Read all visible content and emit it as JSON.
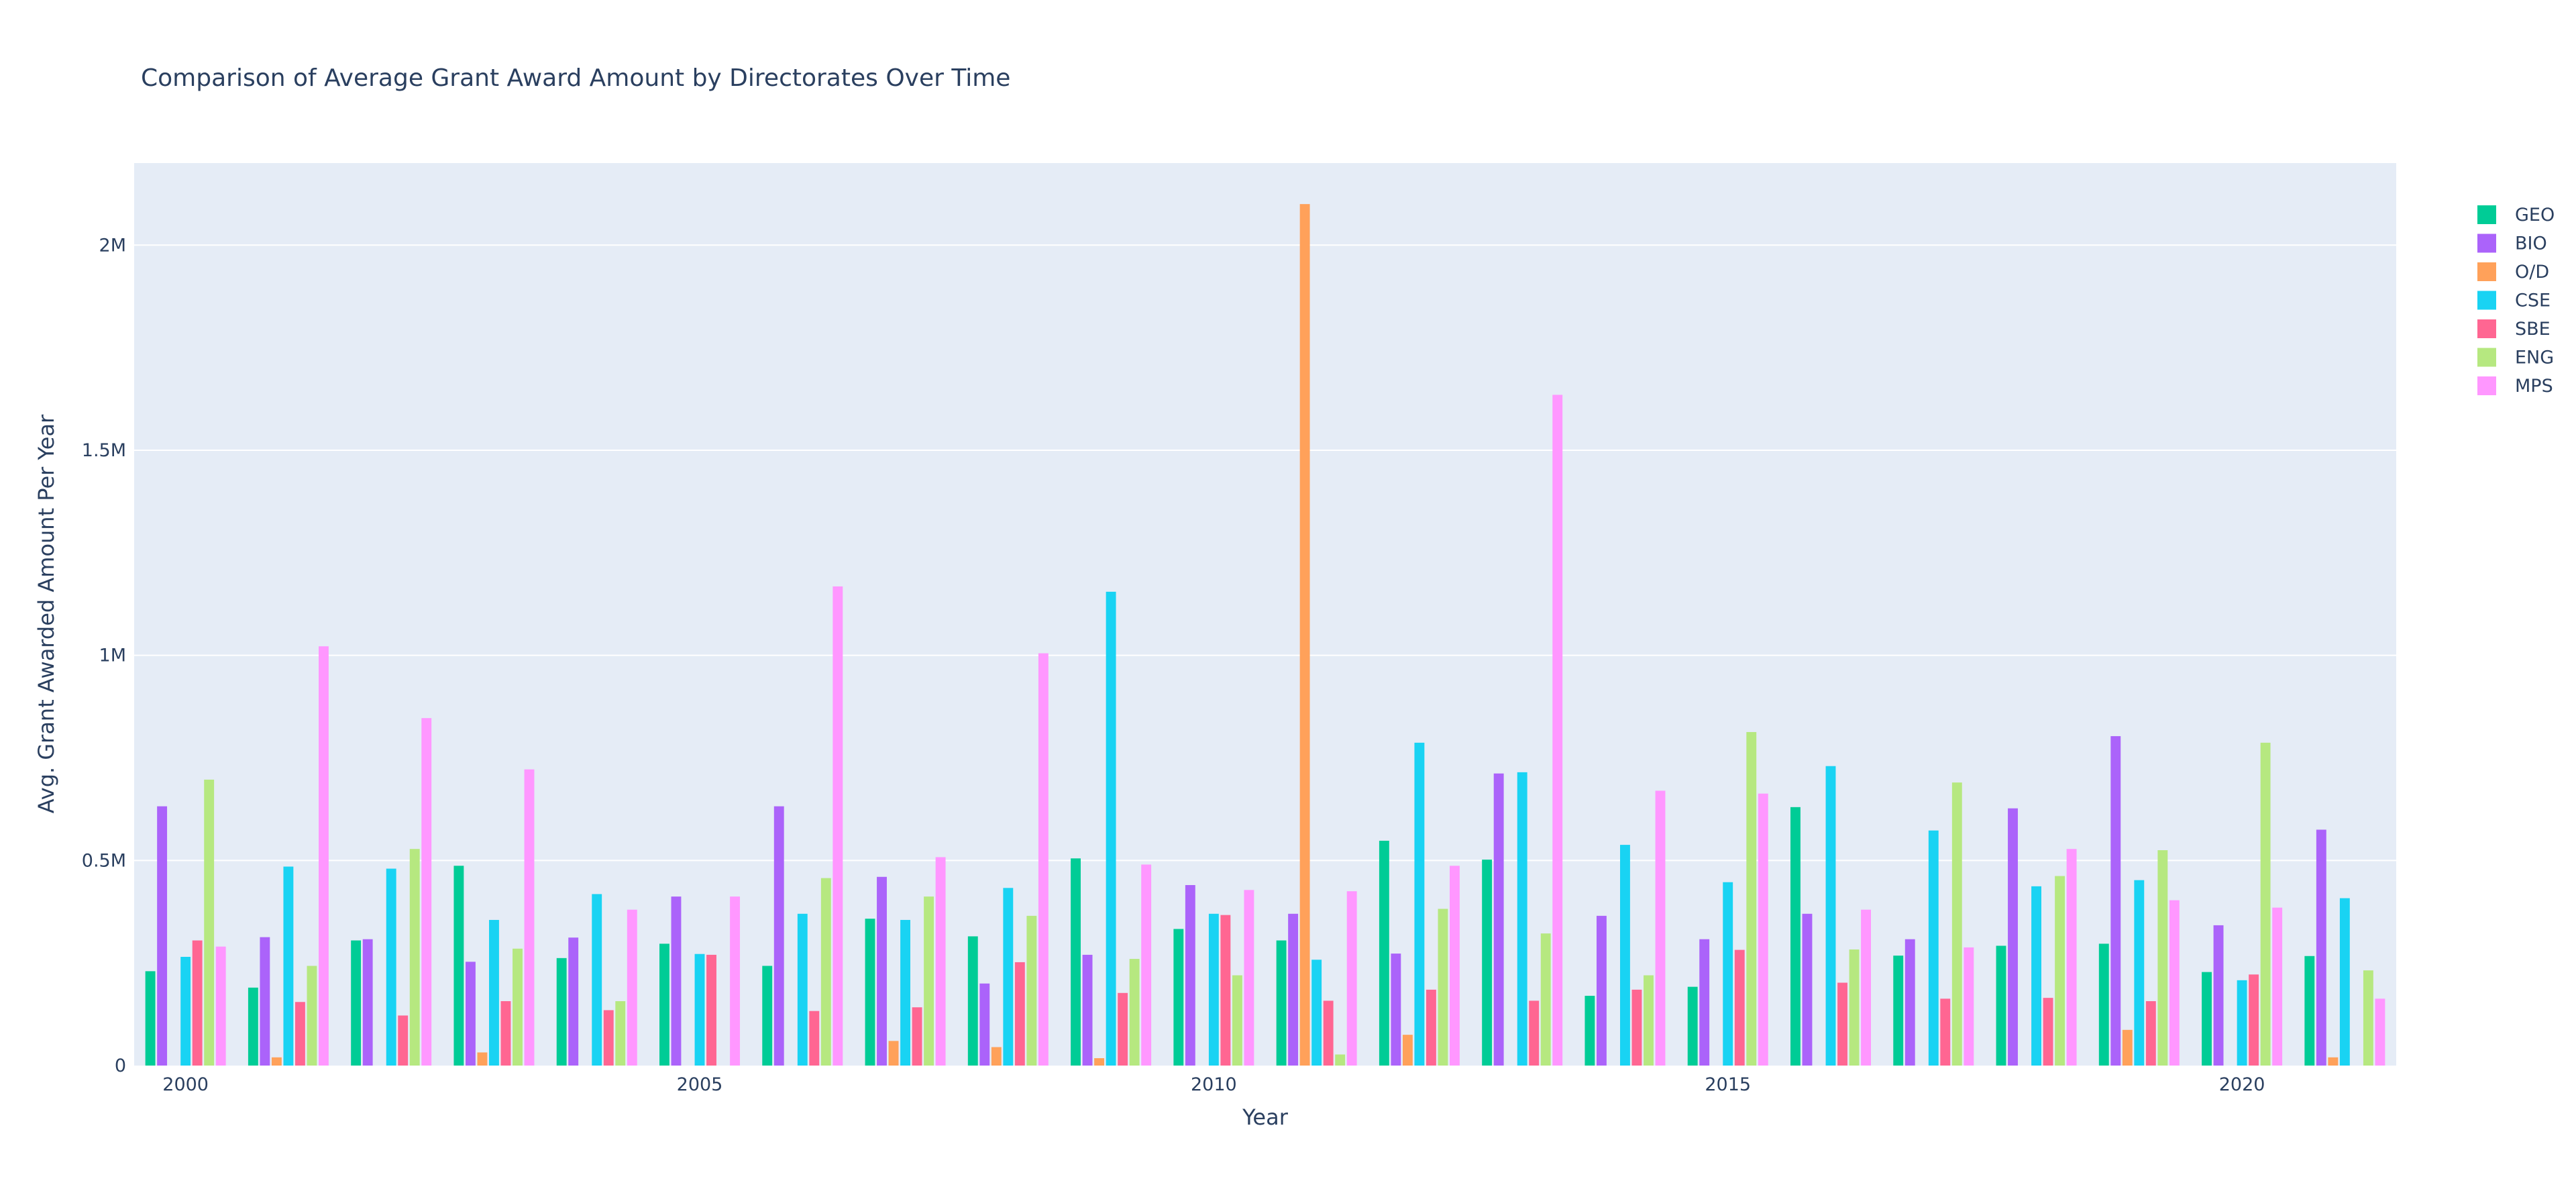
{
  "chart_data": {
    "type": "bar",
    "barmode": "group",
    "title": "Comparison of Average Grant Award Amount by Directorates Over Time",
    "xlabel": "Year",
    "ylabel": "Avg. Grant Awarded Amount Per Year",
    "x": [
      2000,
      2001,
      2002,
      2003,
      2004,
      2005,
      2006,
      2007,
      2008,
      2009,
      2010,
      2011,
      2012,
      2013,
      2014,
      2015,
      2016,
      2017,
      2018,
      2019,
      2020,
      2021
    ],
    "xtick_values": [
      2000,
      2005,
      2010,
      2015,
      2020
    ],
    "xtick_labels": [
      "2000",
      "2005",
      "2010",
      "2015",
      "2020"
    ],
    "ylim": [
      0,
      2200000
    ],
    "ytick_values": [
      0,
      500000,
      1000000,
      1500000,
      2000000
    ],
    "ytick_labels": [
      "0",
      "0.5M",
      "1M",
      "1.5M",
      "2M"
    ],
    "grid": true,
    "legend_position": "right",
    "series": [
      {
        "name": "GEO",
        "color": "#00cc96",
        "values": [
          230000,
          190000,
          305000,
          487000,
          262000,
          297000,
          243000,
          358000,
          315000,
          505000,
          333000,
          305000,
          548000,
          502000,
          170000,
          192000,
          630000,
          268000,
          292000,
          297000,
          228000,
          267000
        ]
      },
      {
        "name": "BIO",
        "color": "#ab63fa",
        "values": [
          632000,
          313000,
          308000,
          253000,
          312000,
          412000,
          632000,
          460000,
          200000,
          270000,
          440000,
          370000,
          273000,
          712000,
          365000,
          308000,
          370000,
          308000,
          627000,
          803000,
          342000,
          575000
        ]
      },
      {
        "name": "O/D",
        "color": "#ffa15a",
        "values": [
          null,
          20000,
          null,
          32000,
          null,
          null,
          null,
          60000,
          45000,
          18000,
          null,
          2100000,
          75000,
          null,
          null,
          null,
          null,
          null,
          null,
          87000,
          null,
          20000
        ]
      },
      {
        "name": "CSE",
        "color": "#19d3f3",
        "values": [
          265000,
          485000,
          480000,
          355000,
          418000,
          272000,
          370000,
          355000,
          433000,
          1155000,
          370000,
          258000,
          787000,
          715000,
          538000,
          447000,
          730000,
          573000,
          437000,
          452000,
          208000,
          408000
        ]
      },
      {
        "name": "SBE",
        "color": "#ff6692",
        "values": [
          305000,
          155000,
          122000,
          157000,
          135000,
          270000,
          133000,
          142000,
          252000,
          177000,
          367000,
          158000,
          185000,
          158000,
          185000,
          282000,
          202000,
          163000,
          165000,
          157000,
          222000,
          null
        ]
      },
      {
        "name": "ENG",
        "color": "#b6e880",
        "values": [
          697000,
          243000,
          528000,
          285000,
          157000,
          null,
          457000,
          412000,
          365000,
          260000,
          220000,
          27000,
          382000,
          322000,
          220000,
          813000,
          283000,
          690000,
          462000,
          525000,
          787000,
          232000
        ]
      },
      {
        "name": "MPS",
        "color": "#ff97ff",
        "values": [
          290000,
          1022000,
          847000,
          722000,
          380000,
          412000,
          1168000,
          508000,
          1005000,
          490000,
          428000,
          425000,
          487000,
          1635000,
          670000,
          663000,
          380000,
          288000,
          528000,
          403000,
          385000,
          163000
        ]
      }
    ]
  }
}
